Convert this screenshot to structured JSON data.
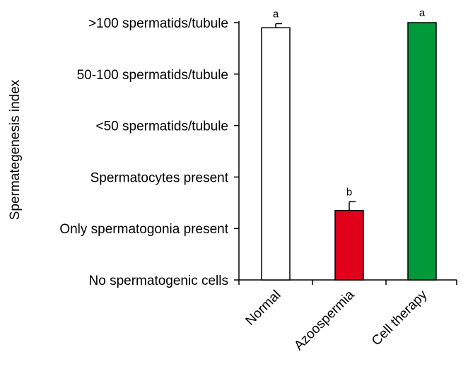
{
  "chart_data": {
    "type": "bar",
    "title": "",
    "xlabel": "",
    "ylabel": "Spermategenesis index",
    "categories": [
      "Normal",
      "Azoospermia",
      "Cell therapy"
    ],
    "y_tick_values": [
      0,
      1,
      2,
      3,
      4,
      5
    ],
    "y_tick_labels": [
      "No spermatogenic cells",
      "Only spermatogonia present",
      "Spermatocytes present",
      "<50 spermatids/tubule",
      "50-100 spermatids/tubule",
      ">100 spermatids/tubule"
    ],
    "ylim": [
      0,
      5
    ],
    "values": [
      4.9,
      1.35,
      5.0
    ],
    "errors": [
      0.08,
      0.17,
      0
    ],
    "significance_labels": [
      "a",
      "b",
      "a"
    ],
    "colors": [
      "#ffffff",
      "#e0001b",
      "#009a3a"
    ],
    "grid": false,
    "legend": "none"
  }
}
